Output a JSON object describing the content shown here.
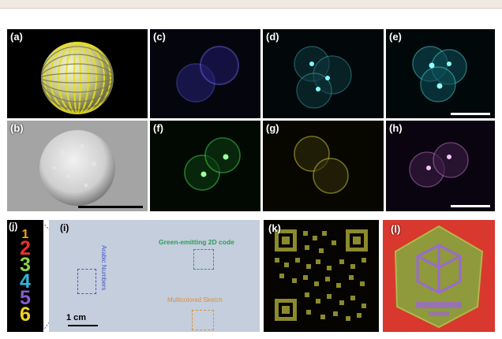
{
  "figure": {
    "panels": {
      "a": {
        "label": "(a)"
      },
      "b": {
        "label": "(b)"
      },
      "c": {
        "label": "(c)"
      },
      "d": {
        "label": "(d)"
      },
      "e": {
        "label": "(e)"
      },
      "f": {
        "label": "(f)"
      },
      "g": {
        "label": "(g)"
      },
      "h": {
        "label": "(h)"
      },
      "i": {
        "label": "(i)",
        "text_arabic": "Arabic Numbers",
        "text_green": "Green-emitting 2D code",
        "text_sketch": "Multicolored Sketch",
        "scale": "1 cm"
      },
      "j": {
        "label": "(j)",
        "digits": [
          "1",
          "2",
          "3",
          "4",
          "5",
          "6"
        ]
      },
      "k": {
        "label": "(k)"
      },
      "l": {
        "label": "(l)"
      }
    },
    "colors": {
      "c_blue": "#5a4fd0",
      "d_cyan": "#3fa9b0",
      "f_green": "#37c24a",
      "g_yellow": "#b9b53a",
      "h_magenta": "#b06ab5",
      "j_digits": [
        "#f7a11b",
        "#e8322b",
        "#8bd44c",
        "#2fb8d9",
        "#8a5ad0",
        "#f2d21f"
      ]
    }
  }
}
